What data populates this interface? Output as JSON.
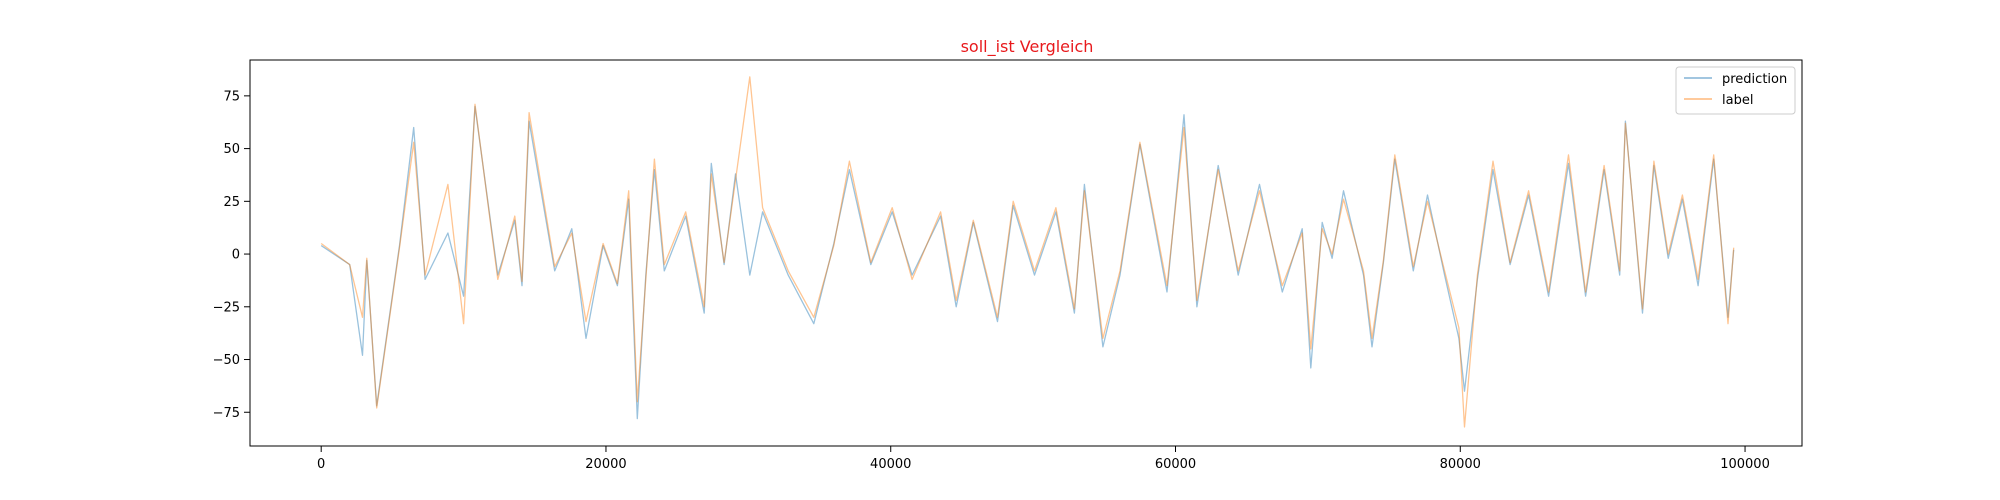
{
  "chart_data": {
    "type": "line",
    "title": "soll_ist Vergleich",
    "title_color": "#e8191c",
    "xlabel": "",
    "ylabel": "",
    "xlim": [
      -5000,
      104000
    ],
    "ylim": [
      -91,
      92
    ],
    "x_ticks": [
      0,
      20000,
      40000,
      60000,
      80000,
      100000
    ],
    "x_tick_labels": [
      "0",
      "20000",
      "40000",
      "60000",
      "80000",
      "100000"
    ],
    "y_ticks": [
      -75,
      -50,
      -25,
      0,
      25,
      50,
      75
    ],
    "y_tick_labels": [
      "−75",
      "−50",
      "−25",
      "0",
      "25",
      "50",
      "75"
    ],
    "grid": false,
    "legend_position": "top-right",
    "series": [
      {
        "name": "prediction",
        "color": "#1f77b4",
        "x": [
          0,
          2000,
          2900,
          3200,
          3900,
          5500,
          6500,
          7300,
          8900,
          10000,
          10800,
          12400,
          13600,
          14100,
          14600,
          16400,
          17600,
          18600,
          19800,
          20800,
          21600,
          22200,
          22800,
          23400,
          24100,
          25600,
          26900,
          27400,
          28300,
          29100,
          30100,
          31000,
          32800,
          34600,
          36000,
          37100,
          38600,
          40100,
          41500,
          43500,
          44600,
          45800,
          47500,
          48600,
          50100,
          51600,
          52900,
          53600,
          54900,
          56100,
          57500,
          59400,
          60600,
          61500,
          63000,
          64400,
          65900,
          67500,
          68900,
          69500,
          70300,
          71000,
          71800,
          73200,
          73800,
          74600,
          75400,
          76700,
          77700,
          78900,
          79900,
          80300,
          81200,
          82300,
          83500,
          84800,
          86200,
          87600,
          88800,
          90100,
          91200,
          91600,
          92800,
          93600,
          94600,
          95600,
          96700,
          97800,
          98800,
          99200
        ],
        "y": [
          4,
          -5,
          -48,
          -3,
          -72,
          4,
          60,
          -12,
          10,
          -20,
          70,
          -10,
          16,
          -15,
          63,
          -8,
          12,
          -40,
          4,
          -15,
          26,
          -78,
          -10,
          40,
          -8,
          18,
          -28,
          43,
          -5,
          38,
          -10,
          20,
          -10,
          -33,
          5,
          40,
          -5,
          20,
          -10,
          18,
          -25,
          15,
          -32,
          23,
          -10,
          20,
          -28,
          33,
          -44,
          -10,
          52,
          -18,
          66,
          -25,
          42,
          -10,
          33,
          -18,
          12,
          -54,
          15,
          -2,
          30,
          -10,
          -44,
          -4,
          45,
          -8,
          28,
          -10,
          -40,
          -65,
          -12,
          40,
          -5,
          28,
          -20,
          43,
          -20,
          40,
          -10,
          63,
          -28,
          42,
          -2,
          26,
          -15,
          45,
          -30,
          2
        ]
      },
      {
        "name": "label",
        "color": "#ff7f0e",
        "x": [
          0,
          2000,
          2900,
          3200,
          3900,
          5500,
          6500,
          7300,
          8900,
          10000,
          10800,
          12400,
          13600,
          14100,
          14600,
          16400,
          17600,
          18600,
          19800,
          20800,
          21600,
          22200,
          22800,
          23400,
          24100,
          25600,
          26900,
          27400,
          28300,
          29100,
          30100,
          31000,
          32800,
          34600,
          36000,
          37100,
          38600,
          40100,
          41500,
          43500,
          44600,
          45800,
          47500,
          48600,
          50100,
          51600,
          52900,
          53600,
          54900,
          56100,
          57500,
          59400,
          60600,
          61500,
          63000,
          64400,
          65900,
          67500,
          68900,
          69500,
          70300,
          71000,
          71800,
          73200,
          73800,
          74600,
          75400,
          76700,
          77700,
          78900,
          79900,
          80300,
          81200,
          82300,
          83500,
          84800,
          86200,
          87600,
          88800,
          90100,
          91200,
          91600,
          92800,
          93600,
          94600,
          95600,
          96700,
          97800,
          98800,
          99200
        ],
        "y": [
          5,
          -5,
          -30,
          -2,
          -73,
          3,
          53,
          -10,
          33,
          -33,
          71,
          -12,
          18,
          -13,
          67,
          -6,
          10,
          -32,
          5,
          -14,
          30,
          -70,
          -12,
          45,
          -5,
          20,
          -25,
          38,
          -4,
          35,
          84,
          22,
          -8,
          -30,
          4,
          44,
          -4,
          22,
          -12,
          20,
          -22,
          16,
          -30,
          25,
          -8,
          22,
          -26,
          30,
          -40,
          -8,
          53,
          -15,
          60,
          -22,
          40,
          -8,
          30,
          -15,
          10,
          -45,
          12,
          0,
          26,
          -8,
          -40,
          -3,
          47,
          -6,
          25,
          -8,
          -35,
          -82,
          -10,
          44,
          -4,
          30,
          -18,
          47,
          -18,
          42,
          -8,
          62,
          -26,
          44,
          0,
          28,
          -12,
          47,
          -33,
          3
        ]
      }
    ]
  }
}
